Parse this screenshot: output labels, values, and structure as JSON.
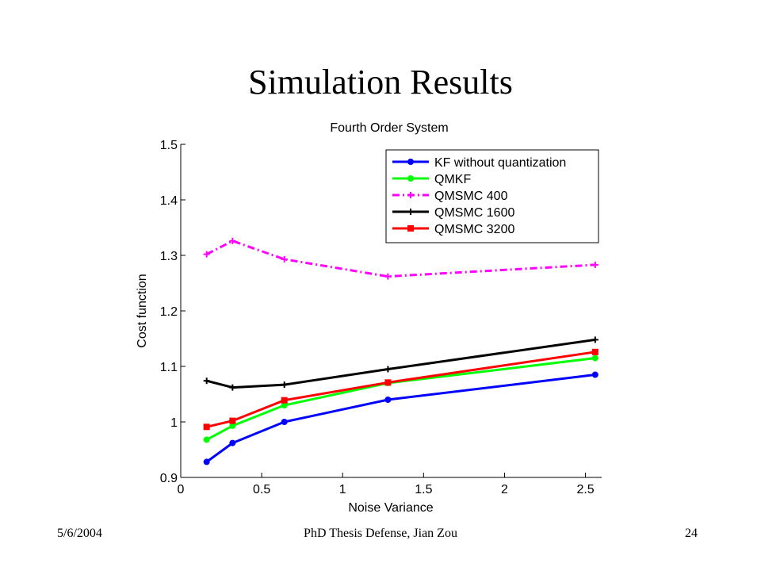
{
  "slide": {
    "title": "Simulation Results",
    "footer_date": "5/6/2004",
    "footer_center": "PhD Thesis Defense, Jian Zou",
    "footer_page": "24"
  },
  "chart_data": {
    "type": "line",
    "title": "Fourth Order System",
    "xlabel": "Noise Variance",
    "ylabel": "Cost function",
    "xlim": [
      0,
      2.6
    ],
    "ylim": [
      0.9,
      1.5
    ],
    "xticks": [
      0,
      0.5,
      1,
      1.5,
      2,
      2.5
    ],
    "xtick_labels": [
      "0",
      "0.5",
      "1",
      "1.5",
      "2",
      "2.5"
    ],
    "yticks": [
      0.9,
      1,
      1.1,
      1.2,
      1.3,
      1.4,
      1.5
    ],
    "ytick_labels": [
      "0.9",
      "1",
      "1.1",
      "1.2",
      "1.3",
      "1.4",
      "1.5"
    ],
    "grid": false,
    "legend_position": "top-right",
    "x": [
      0.16,
      0.32,
      0.64,
      1.28,
      2.56
    ],
    "series": [
      {
        "name": "KF without quantization",
        "color": "#0000ff",
        "marker": "circle",
        "dash": "solid",
        "values": [
          0.928,
          0.962,
          1.0,
          1.04,
          1.085
        ]
      },
      {
        "name": "QMKF",
        "color": "#00ff00",
        "marker": "circle",
        "dash": "solid",
        "values": [
          0.968,
          0.993,
          1.03,
          1.07,
          1.115
        ]
      },
      {
        "name": "QMSMC 400",
        "color": "#ff00ff",
        "marker": "plus",
        "dash": "dashdot",
        "values": [
          1.302,
          1.326,
          1.293,
          1.262,
          1.283
        ]
      },
      {
        "name": "QMSMC 1600",
        "color": "#000000",
        "marker": "plus",
        "dash": "solid",
        "values": [
          1.074,
          1.062,
          1.067,
          1.095,
          1.148
        ]
      },
      {
        "name": "QMSMC 3200",
        "color": "#ff0000",
        "marker": "square",
        "dash": "solid",
        "values": [
          0.991,
          1.002,
          1.039,
          1.071,
          1.126
        ]
      }
    ]
  }
}
